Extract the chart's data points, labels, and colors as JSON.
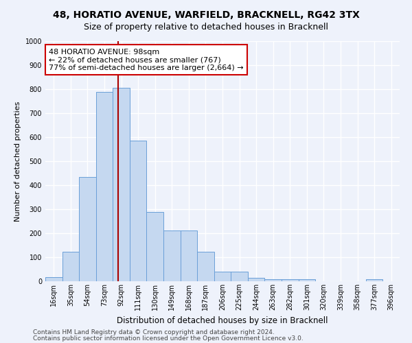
{
  "title1": "48, HORATIO AVENUE, WARFIELD, BRACKNELL, RG42 3TX",
  "title2": "Size of property relative to detached houses in Bracknell",
  "xlabel": "Distribution of detached houses by size in Bracknell",
  "ylabel": "Number of detached properties",
  "bar_color": "#c5d8f0",
  "bar_edge_color": "#6a9fd8",
  "categories": [
    "16sqm",
    "35sqm",
    "54sqm",
    "73sqm",
    "92sqm",
    "111sqm",
    "130sqm",
    "149sqm",
    "168sqm",
    "187sqm",
    "206sqm",
    "225sqm",
    "244sqm",
    "263sqm",
    "282sqm",
    "301sqm",
    "320sqm",
    "339sqm",
    "358sqm",
    "377sqm",
    "396sqm"
  ],
  "values": [
    18,
    122,
    435,
    790,
    805,
    585,
    290,
    212,
    212,
    122,
    40,
    40,
    15,
    10,
    10,
    10,
    0,
    0,
    0,
    10,
    0
  ],
  "bin_starts": [
    16,
    35,
    54,
    73,
    92,
    111,
    130,
    149,
    168,
    187,
    206,
    225,
    244,
    263,
    282,
    301,
    320,
    339,
    358,
    377,
    396
  ],
  "bin_width": 19,
  "property_size": 98,
  "vline_color": "#aa0000",
  "annotation_text": "48 HORATIO AVENUE: 98sqm\n← 22% of detached houses are smaller (767)\n77% of semi-detached houses are larger (2,664) →",
  "annotation_box_facecolor": "#ffffff",
  "annotation_box_edgecolor": "#cc0000",
  "ylim": [
    0,
    1000
  ],
  "yticks": [
    0,
    100,
    200,
    300,
    400,
    500,
    600,
    700,
    800,
    900,
    1000
  ],
  "background_color": "#eef2fb",
  "grid_color": "#ffffff",
  "footer1": "Contains HM Land Registry data © Crown copyright and database right 2024.",
  "footer2": "Contains public sector information licensed under the Open Government Licence v3.0.",
  "title1_fontsize": 10,
  "title2_fontsize": 9,
  "xlabel_fontsize": 8.5,
  "ylabel_fontsize": 8,
  "tick_fontsize": 7,
  "annotation_fontsize": 8,
  "footer_fontsize": 6.5
}
